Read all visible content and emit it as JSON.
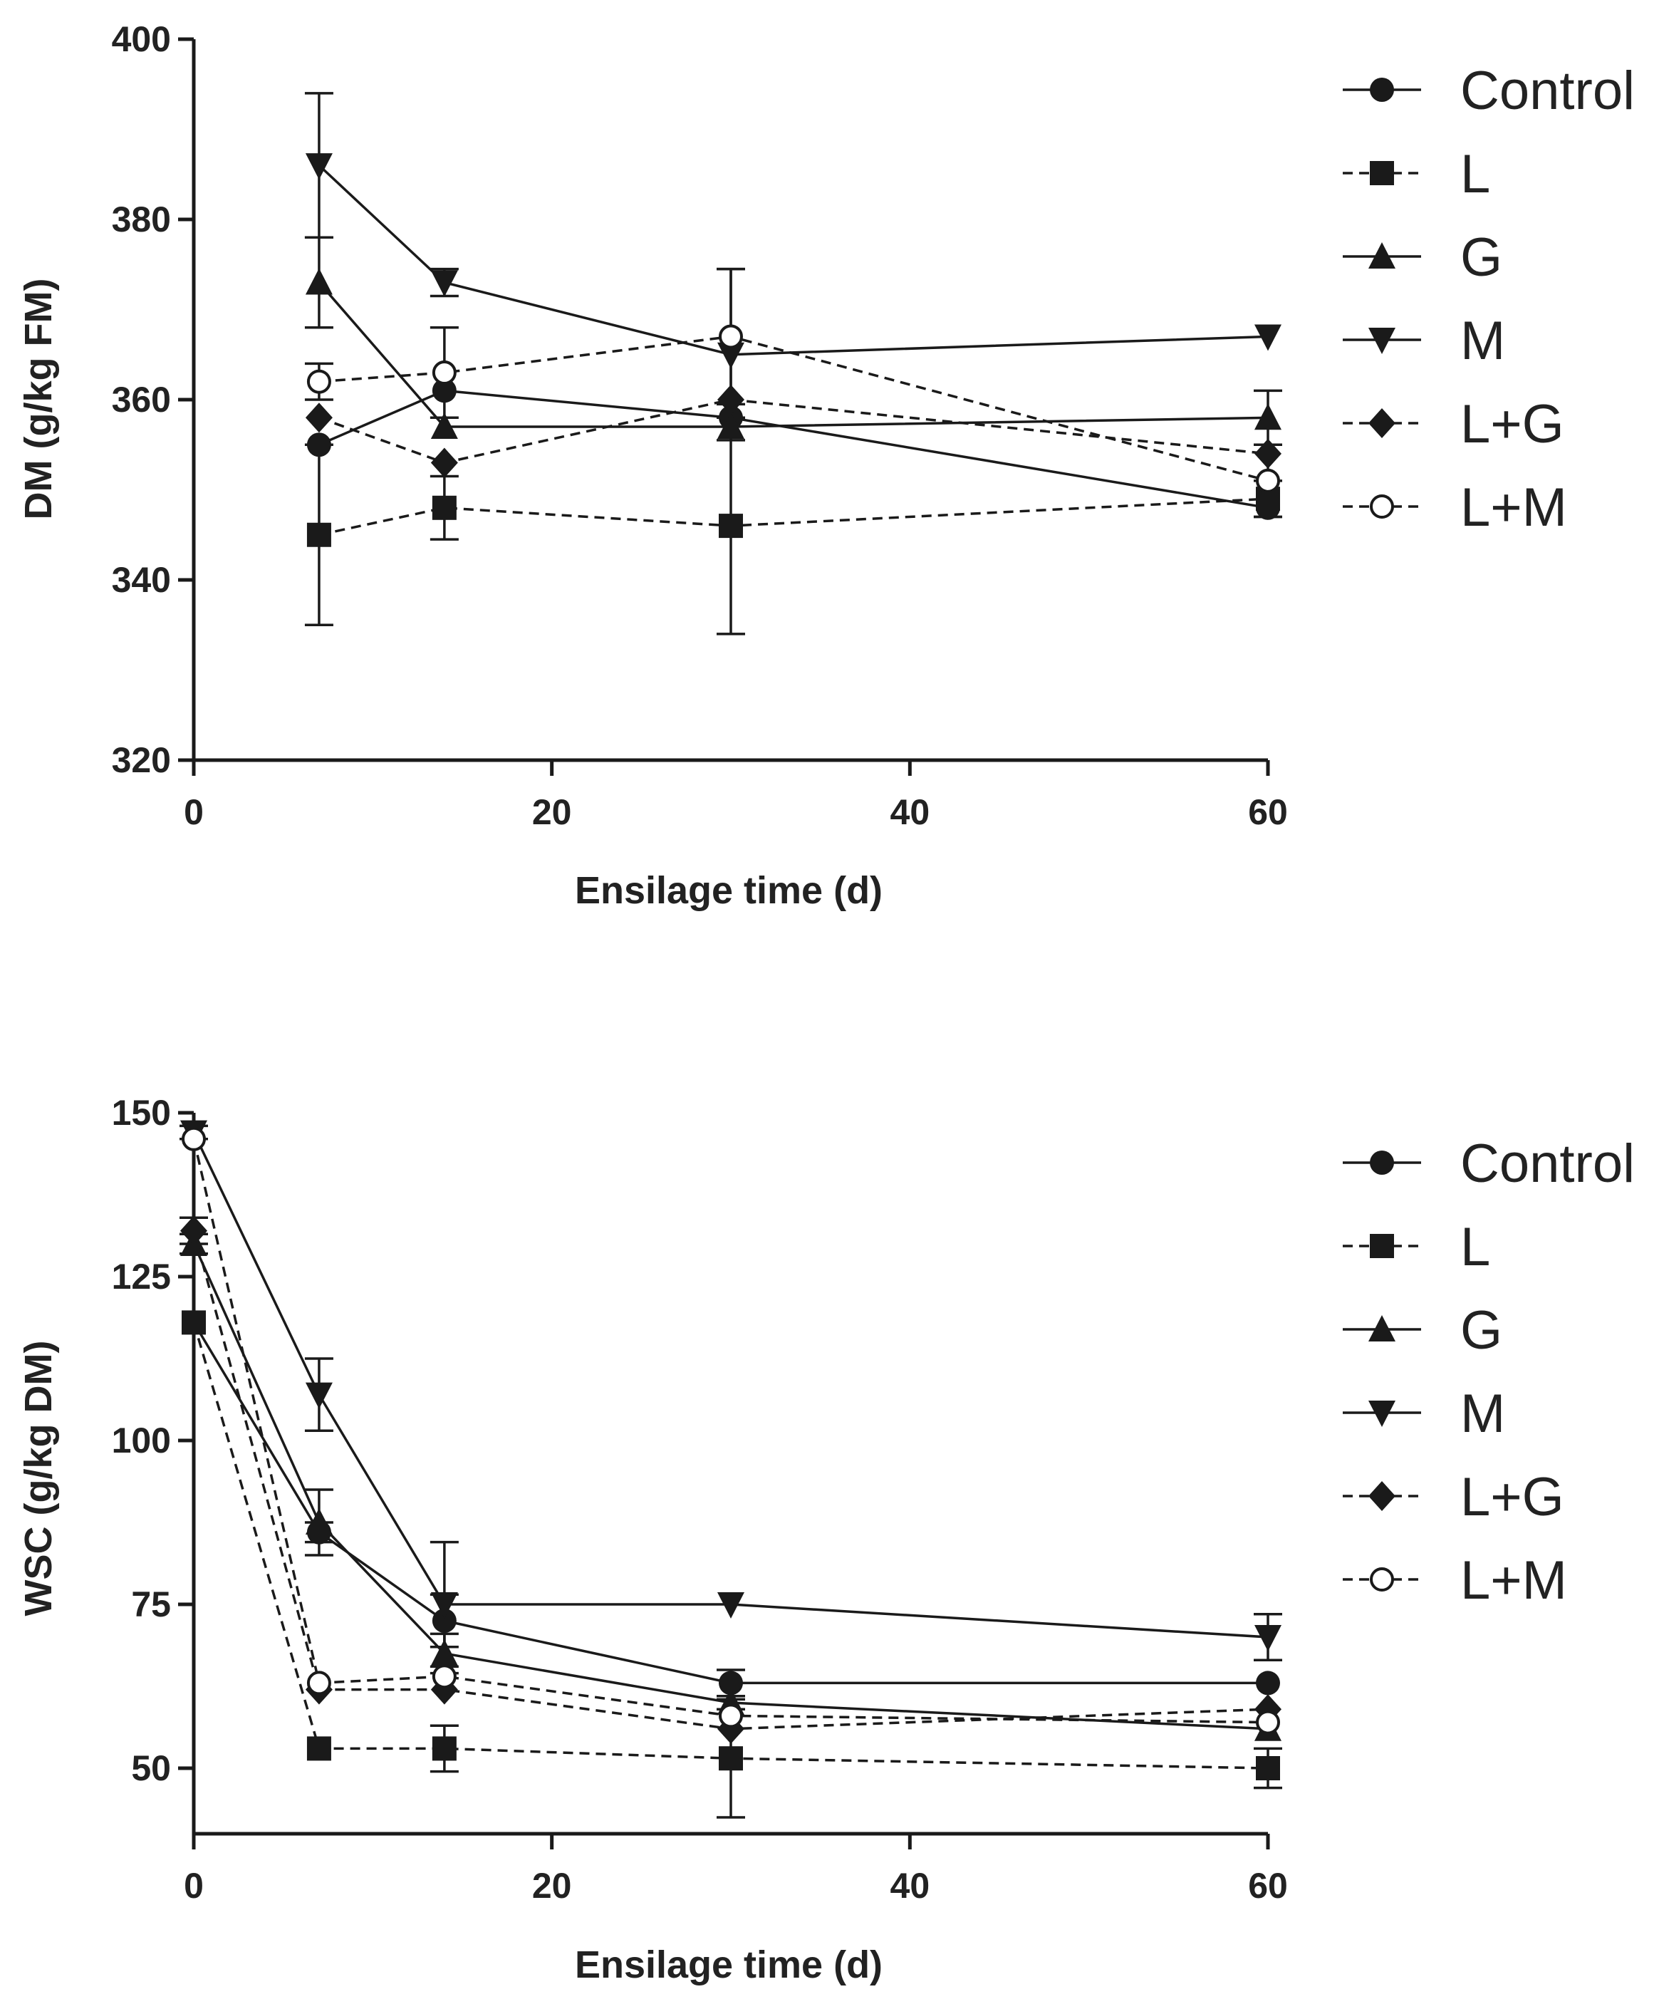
{
  "chart_data": [
    {
      "type": "line",
      "title": "",
      "xlabel": "Ensilage time (d)",
      "ylabel": "DM (g/kg FM)",
      "xlim": [
        0,
        60
      ],
      "ylim": [
        320,
        400
      ],
      "xticks": [
        0,
        20,
        40,
        60
      ],
      "yticks": [
        320,
        340,
        360,
        380,
        400
      ],
      "x": [
        7,
        14,
        30,
        60
      ],
      "grid": false,
      "legend_position": "right",
      "series": [
        {
          "name": "Control",
          "marker": "circle",
          "dashed": false,
          "values": [
            355,
            361,
            358,
            348
          ],
          "errors": [
            0,
            0,
            0,
            0
          ]
        },
        {
          "name": "L",
          "marker": "square",
          "dashed": true,
          "values": [
            345,
            348,
            346,
            349
          ],
          "errors": [
            10,
            3.5,
            12,
            2
          ]
        },
        {
          "name": "G",
          "marker": "triangle-up",
          "dashed": false,
          "values": [
            373,
            357,
            357,
            358
          ],
          "errors": [
            5,
            0,
            0,
            3
          ]
        },
        {
          "name": "M",
          "marker": "triangle-down",
          "dashed": false,
          "values": [
            386,
            373,
            365,
            367
          ],
          "errors": [
            8,
            1.5,
            9.5,
            0
          ]
        },
        {
          "name": "L+G",
          "marker": "diamond",
          "dashed": true,
          "values": [
            358,
            353,
            360,
            354
          ],
          "errors": [
            0,
            0,
            0,
            0
          ]
        },
        {
          "name": "L+M",
          "marker": "open-circle",
          "dashed": true,
          "values": [
            362,
            363,
            367,
            351
          ],
          "errors": [
            2,
            5,
            7.5,
            4
          ]
        }
      ]
    },
    {
      "type": "line",
      "title": "",
      "xlabel": "Ensilage time (d)",
      "ylabel": "WSC (g/kg DM)",
      "xlim": [
        0,
        60
      ],
      "ylim": [
        40,
        150
      ],
      "xticks": [
        0,
        20,
        40,
        60
      ],
      "yticks": [
        50,
        75,
        100,
        125,
        150
      ],
      "x": [
        0,
        7,
        14,
        30,
        60
      ],
      "grid": false,
      "legend_position": "right",
      "series": [
        {
          "name": "Control",
          "marker": "circle",
          "dashed": false,
          "values": [
            118,
            86,
            72.5,
            63,
            63
          ],
          "errors": [
            0,
            1.5,
            4,
            2,
            0
          ]
        },
        {
          "name": "L",
          "marker": "square",
          "dashed": true,
          "values": [
            118,
            53,
            53,
            51.5,
            50
          ],
          "errors": [
            0,
            0,
            3.5,
            9,
            3
          ]
        },
        {
          "name": "G",
          "marker": "triangle-up",
          "dashed": false,
          "values": [
            130,
            87.5,
            67.5,
            60,
            56
          ],
          "errors": [
            1.5,
            5,
            3,
            1,
            0
          ]
        },
        {
          "name": "M",
          "marker": "triangle-down",
          "dashed": false,
          "values": [
            147,
            107,
            75,
            75,
            70
          ],
          "errors": [
            1,
            5.5,
            9.5,
            0,
            3.5
          ]
        },
        {
          "name": "L+G",
          "marker": "diamond",
          "dashed": true,
          "values": [
            132,
            62,
            62,
            56,
            59
          ],
          "errors": [
            2,
            0,
            0,
            0,
            0
          ]
        },
        {
          "name": "L+M",
          "marker": "open-circle",
          "dashed": true,
          "values": [
            146,
            63,
            64,
            58,
            57
          ],
          "errors": [
            0,
            0,
            0,
            0,
            0
          ]
        }
      ]
    }
  ]
}
